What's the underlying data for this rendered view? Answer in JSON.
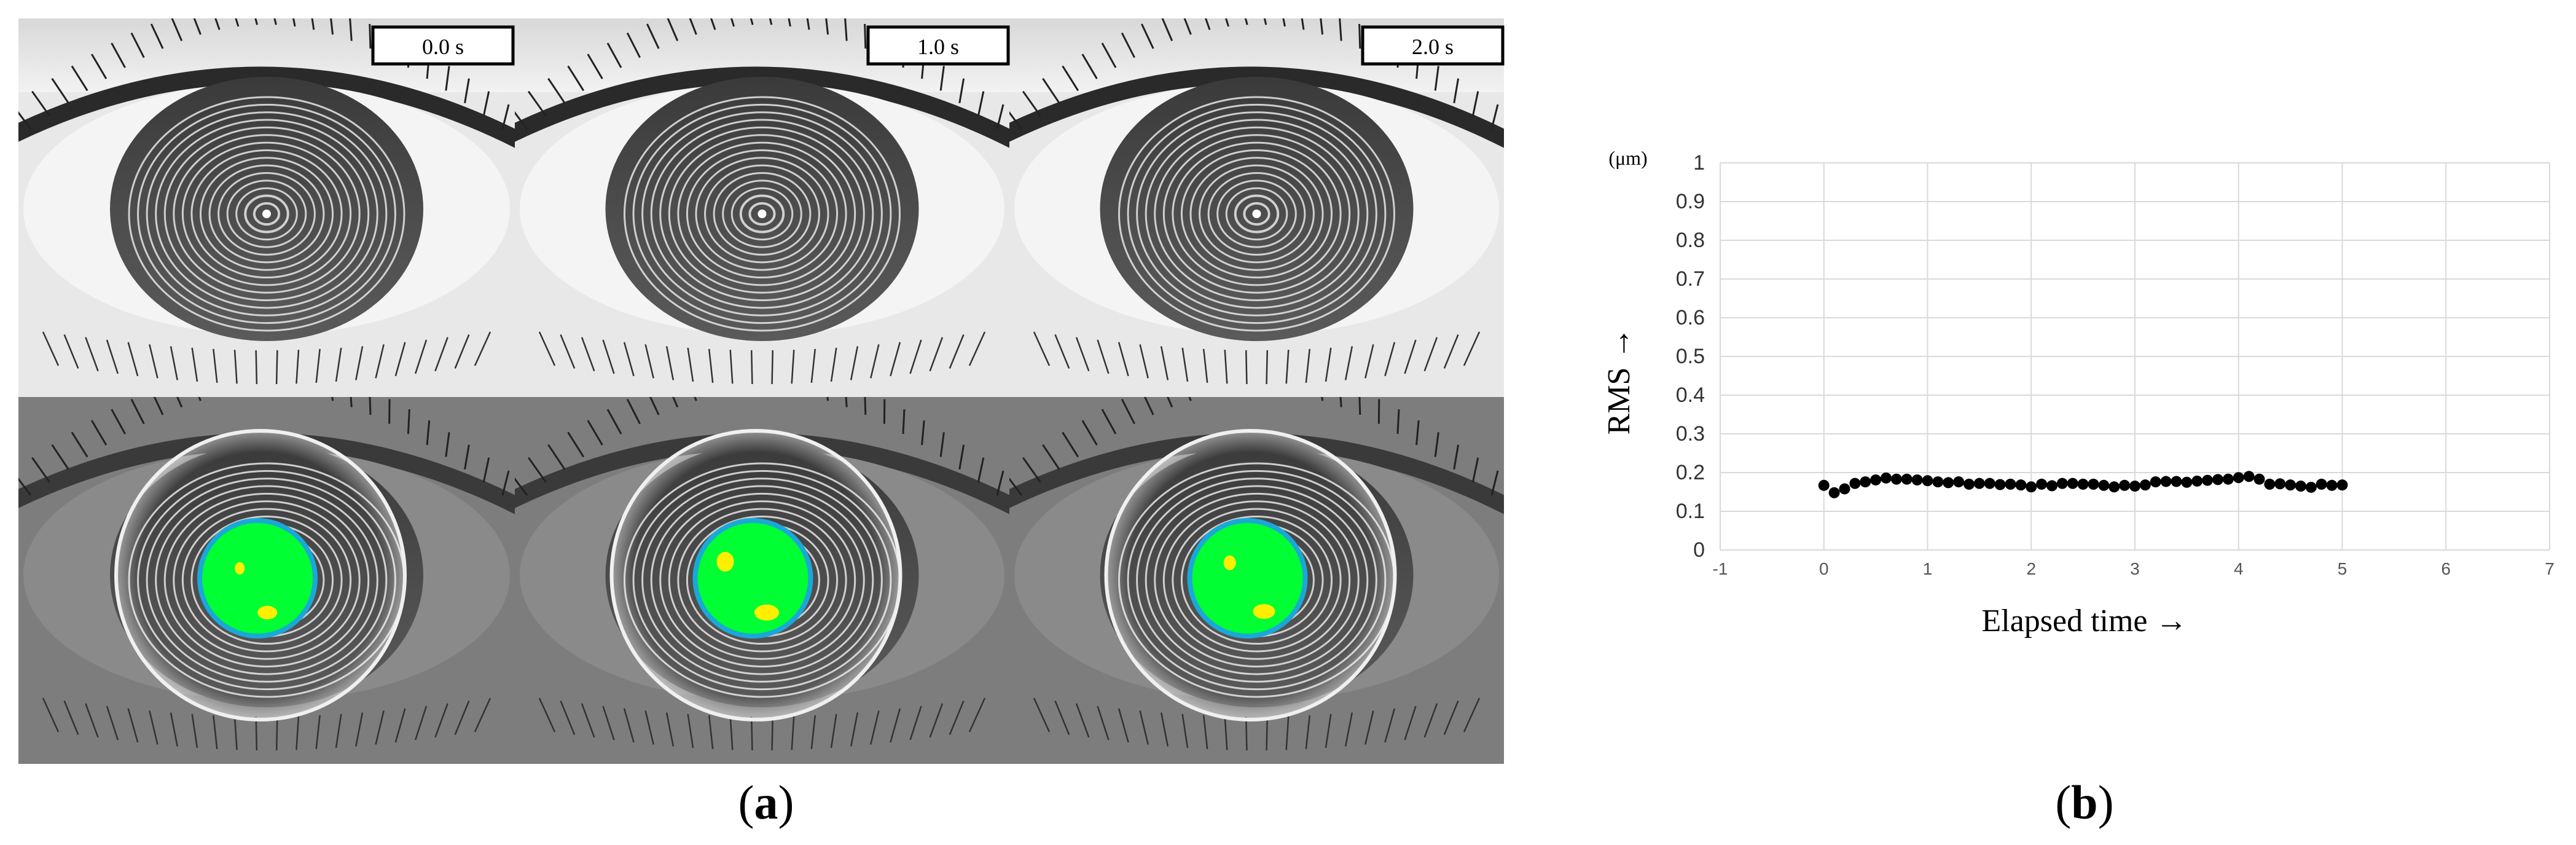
{
  "panel_a": {
    "label_open": "(",
    "label_letter": "a",
    "label_close": ")",
    "time_labels": [
      "0.0 s",
      "1.0 s",
      "2.0 s"
    ]
  },
  "panel_b": {
    "label_open": "(",
    "label_letter": "b",
    "label_close": ")"
  },
  "colors": {
    "map_green": "#00ff33",
    "map_cyan": "#1aa8d8",
    "map_yellow": "#ffee00",
    "gray_background": "#7d7d7d",
    "marker": "#000000",
    "grid": "#d9d9d9"
  },
  "chart_data": {
    "type": "scatter",
    "title": "",
    "xlabel": "Elapsed time →",
    "ylabel": "RMS →",
    "y_unit": "(μm)",
    "xlim": [
      -1,
      7
    ],
    "ylim": [
      0,
      1
    ],
    "x_ticks": [
      "-1",
      "0",
      "1",
      "2",
      "3",
      "4",
      "5",
      "6",
      "7"
    ],
    "y_ticks": [
      "0",
      "0.1",
      "0.2",
      "0.3",
      "0.4",
      "0.5",
      "0.6",
      "0.7",
      "0.8",
      "0.9",
      "1"
    ],
    "grid": true,
    "series": [
      {
        "x": [
          0,
          0.1,
          0.2,
          0.3,
          0.4,
          0.5,
          0.6,
          0.7,
          0.8,
          0.9,
          1.0,
          1.1,
          1.2,
          1.3,
          1.4,
          1.5,
          1.6,
          1.7,
          1.8,
          1.9,
          2.0,
          2.1,
          2.2,
          2.3,
          2.4,
          2.5,
          2.6,
          2.7,
          2.8,
          2.9,
          3.0,
          3.1,
          3.2,
          3.3,
          3.4,
          3.5,
          3.6,
          3.7,
          3.8,
          3.9,
          4.0,
          4.1,
          4.2,
          4.3,
          4.4,
          4.5,
          4.6,
          4.7,
          4.8,
          4.9,
          5.0
        ],
        "y": [
          0.167,
          0.148,
          0.158,
          0.172,
          0.176,
          0.181,
          0.186,
          0.183,
          0.183,
          0.181,
          0.179,
          0.176,
          0.174,
          0.176,
          0.17,
          0.172,
          0.172,
          0.169,
          0.17,
          0.168,
          0.163,
          0.17,
          0.166,
          0.172,
          0.172,
          0.17,
          0.17,
          0.167,
          0.163,
          0.167,
          0.165,
          0.168,
          0.176,
          0.177,
          0.177,
          0.175,
          0.178,
          0.18,
          0.182,
          0.183,
          0.187,
          0.19,
          0.183,
          0.17,
          0.171,
          0.168,
          0.165,
          0.162,
          0.17,
          0.167,
          0.168
        ]
      }
    ]
  }
}
